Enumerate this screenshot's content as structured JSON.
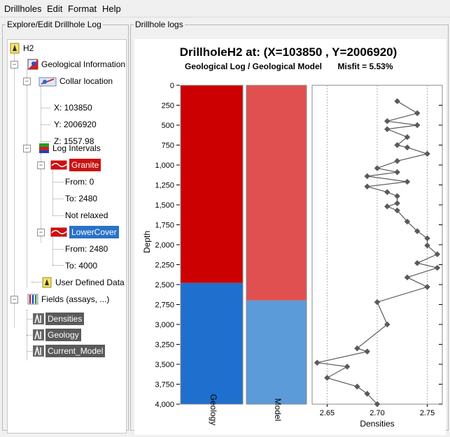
{
  "menu": [
    "Drillholes",
    "Edit",
    "Format",
    "Help"
  ],
  "left_panel": {
    "title": "Explore/Edit Drillhole Log",
    "tree": {
      "root": "H2",
      "geo_info": "Geological Information",
      "collar": "Collar location",
      "x": "X: 103850",
      "y": "Y: 2006920",
      "z": "Z: 1557.98",
      "log_intervals": "Log Intervals",
      "granite": "Granite",
      "granite_from": "From: 0",
      "granite_to": "To: 2480",
      "granite_relax": "Not relaxed",
      "lowercover": "LowerCover",
      "lc_from": "From: 2480",
      "lc_to": "To: 4000",
      "user_defined": "User Defined Data",
      "fields": "Fields (assays, ...)",
      "densities": "Densities",
      "geology": "Geology",
      "current_model": "Current_Model"
    }
  },
  "right_panel": {
    "title": "Drillhole logs"
  },
  "colors": {
    "granite_geology": "#cc0000",
    "granite_model": "#e05050",
    "lowercover_geology": "#1f6fce",
    "lowercover_model": "#5b9bd9",
    "density_line": "#5a5a5a"
  },
  "chart_data": {
    "type": "line",
    "title": "DrillholeH2 at: (X=103850 , Y=2006920)",
    "subtitle": "Geological Log / Geological Model",
    "misfit": "Misfit = 5.53%",
    "ylabel": "Depth",
    "ylim": [
      0,
      4000
    ],
    "yticks": [
      "0",
      "250",
      "500",
      "750",
      "1,000",
      "1,250",
      "1,500",
      "1,750",
      "2,000",
      "2,250",
      "2,500",
      "2,750",
      "3,000",
      "3,250",
      "3,500",
      "3,750",
      "4,000"
    ],
    "geology_column": {
      "label": "Geology",
      "intervals": [
        {
          "name": "Granite",
          "from": 0,
          "to": 2480,
          "color": "#cc0000"
        },
        {
          "name": "LowerCover",
          "from": 2480,
          "to": 4000,
          "color": "#1f6fce"
        }
      ]
    },
    "model_column": {
      "label": "Model",
      "intervals": [
        {
          "name": "Granite",
          "from": 0,
          "to": 2700,
          "color": "#e05050"
        },
        {
          "name": "LowerCover",
          "from": 2700,
          "to": 4000,
          "color": "#5b9bd9"
        }
      ]
    },
    "densities": {
      "xlabel": "Densities",
      "xlim": [
        2.635,
        2.765
      ],
      "xticks": [
        "2.65",
        "2.70",
        "2.75"
      ],
      "depth": [
        200,
        350,
        450,
        500,
        550,
        650,
        750,
        780,
        860,
        950,
        1040,
        1090,
        1140,
        1210,
        1270,
        1340,
        1390,
        1480,
        1520,
        1570,
        1710,
        1830,
        1920,
        2010,
        2120,
        2230,
        2290,
        2410,
        2530,
        2720,
        3000,
        3300,
        3340,
        3480,
        3530,
        3670,
        3780,
        3870,
        4000
      ],
      "values": [
        2.72,
        2.74,
        2.71,
        2.74,
        2.71,
        2.73,
        2.72,
        2.73,
        2.75,
        2.72,
        2.7,
        2.72,
        2.69,
        2.73,
        2.69,
        2.71,
        2.72,
        2.72,
        2.71,
        2.72,
        2.73,
        2.74,
        2.75,
        2.75,
        2.76,
        2.74,
        2.76,
        2.73,
        2.75,
        2.7,
        2.71,
        2.68,
        2.69,
        2.64,
        2.67,
        2.65,
        2.68,
        2.69,
        2.7
      ]
    }
  }
}
